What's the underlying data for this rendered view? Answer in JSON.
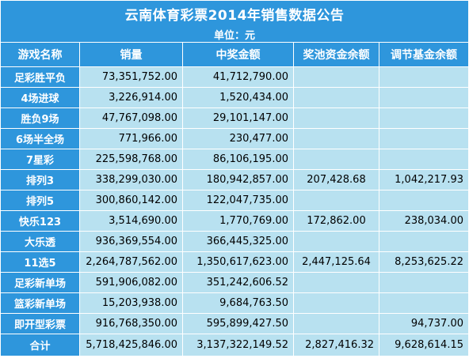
{
  "title": "云南体育彩票2014年销售数据公告",
  "unit": "单位：元",
  "headers": [
    "游戏名称",
    "销量",
    "中奖金额",
    "奖池资金余额",
    "调节基金余额"
  ],
  "rows": [
    {
      "name": "足彩胜平负",
      "sales": "73,351,752.00",
      "prize": "41,712,790.00",
      "pool": "",
      "fund": ""
    },
    {
      "name": "4场进球",
      "sales": "3,226,914.00",
      "prize": "1,520,434.00",
      "pool": "",
      "fund": ""
    },
    {
      "name": "胜负9场",
      "sales": "47,767,098.00",
      "prize": "29,101,147.00",
      "pool": "",
      "fund": ""
    },
    {
      "name": "6场半全场",
      "sales": "771,966.00",
      "prize": "230,477.00",
      "pool": "",
      "fund": ""
    },
    {
      "name": "7星彩",
      "sales": "225,598,768.00",
      "prize": "86,106,195.00",
      "pool": "",
      "fund": ""
    },
    {
      "name": "排列3",
      "sales": "338,299,030.00",
      "prize": "180,942,857.00",
      "pool": "207,428.68",
      "fund": "1,042,217.93"
    },
    {
      "name": "排列5",
      "sales": "300,860,142.00",
      "prize": "122,047,735.00",
      "pool": "",
      "fund": ""
    },
    {
      "name": "快乐123",
      "sales": "3,514,690.00",
      "prize": "1,770,769.00",
      "pool": "172,862.00",
      "fund": "238,034.00"
    },
    {
      "name": "大乐透",
      "sales": "936,369,554.00",
      "prize": "366,445,325.00",
      "pool": "",
      "fund": ""
    },
    {
      "name": "11选5",
      "sales": "2,264,787,562.00",
      "prize": "1,350,617,623.00",
      "pool": "2,447,125.64",
      "fund": "8,253,625.22"
    },
    {
      "name": "足彩新单场",
      "sales": "591,906,082.00",
      "prize": "351,242,606.52",
      "pool": "",
      "fund": ""
    },
    {
      "name": "篮彩新单场",
      "sales": "15,203,938.00",
      "prize": "9,684,763.50",
      "pool": "",
      "fund": ""
    },
    {
      "name": "即开型彩票",
      "sales": "916,768,350.00",
      "prize": "595,899,427.50",
      "pool": "",
      "fund": "94,737.00"
    }
  ],
  "total": {
    "name": "合计",
    "sales": "5,718,425,846.00",
    "prize": "3,137,322,149.52",
    "pool": "2,827,416.32",
    "fund": "9,628,614.15"
  },
  "colors": {
    "header_blue": "#2e96dc",
    "cell_light_blue": "#b8e1f0",
    "grid_line": "#ffffff"
  }
}
